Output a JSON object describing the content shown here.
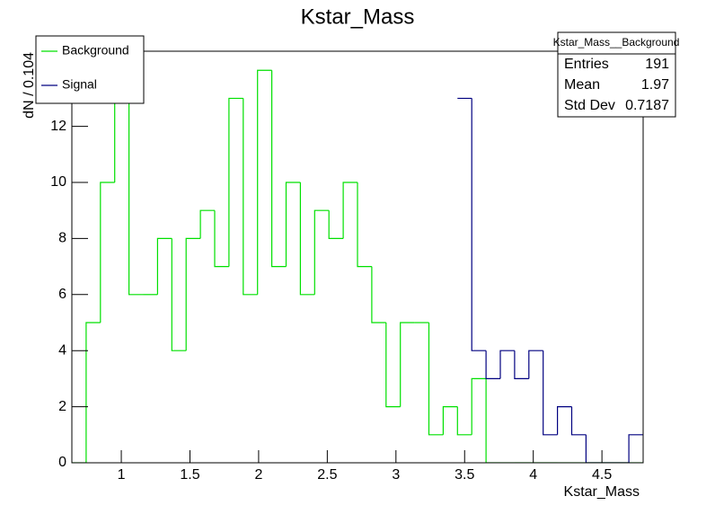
{
  "chart_data": {
    "type": "histogram",
    "title": "Kstar_Mass",
    "x_label": "Kstar_Mass",
    "y_label": "dN / 0.104",
    "bins": [
      0.64,
      0.744,
      0.848,
      0.952,
      1.056,
      1.16,
      1.264,
      1.368,
      1.472,
      1.576,
      1.68,
      1.784,
      1.888,
      1.992,
      2.096,
      2.2,
      2.304,
      2.408,
      2.512,
      2.616,
      2.72,
      2.824,
      2.928,
      3.032,
      3.136,
      3.24,
      3.344,
      3.448,
      3.552,
      3.656,
      3.76,
      3.864,
      3.968,
      4.072,
      4.176,
      4.28,
      4.384,
      4.488,
      4.592,
      4.696,
      4.8
    ],
    "series": [
      {
        "name": "Background",
        "color": "#00e000",
        "values": [
          0,
          5,
          10,
          14,
          6,
          6,
          8,
          4,
          8,
          9,
          7,
          13,
          6,
          14,
          7,
          10,
          6,
          9,
          8,
          10,
          7,
          5,
          2,
          5,
          5,
          1,
          2,
          1,
          3,
          0,
          0,
          0,
          0,
          0,
          0,
          0,
          0,
          0,
          0,
          0
        ]
      },
      {
        "name": "Signal",
        "color": "#000080",
        "values": [
          null,
          null,
          null,
          null,
          null,
          null,
          null,
          null,
          null,
          null,
          null,
          null,
          null,
          null,
          null,
          null,
          null,
          null,
          null,
          null,
          null,
          null,
          null,
          null,
          null,
          null,
          null,
          13,
          4,
          3,
          4,
          3,
          4,
          1,
          2,
          1,
          0,
          0,
          0,
          1
        ]
      }
    ],
    "xlim": [
      0.64,
      4.8
    ],
    "ylim": [
      0,
      14.68
    ],
    "xticks": [
      1,
      1.5,
      2,
      2.5,
      3,
      3.5,
      4,
      4.5
    ],
    "yticks": [
      0,
      2,
      4,
      6,
      8,
      10,
      12
    ],
    "legend": "top-left",
    "stats": {
      "title": "Kstar_Mass__Background",
      "rows": [
        {
          "label": "Entries",
          "value": 191
        },
        {
          "label": "Mean",
          "value": 1.97
        },
        {
          "label": "Std Dev",
          "value": 0.7187
        }
      ]
    }
  }
}
